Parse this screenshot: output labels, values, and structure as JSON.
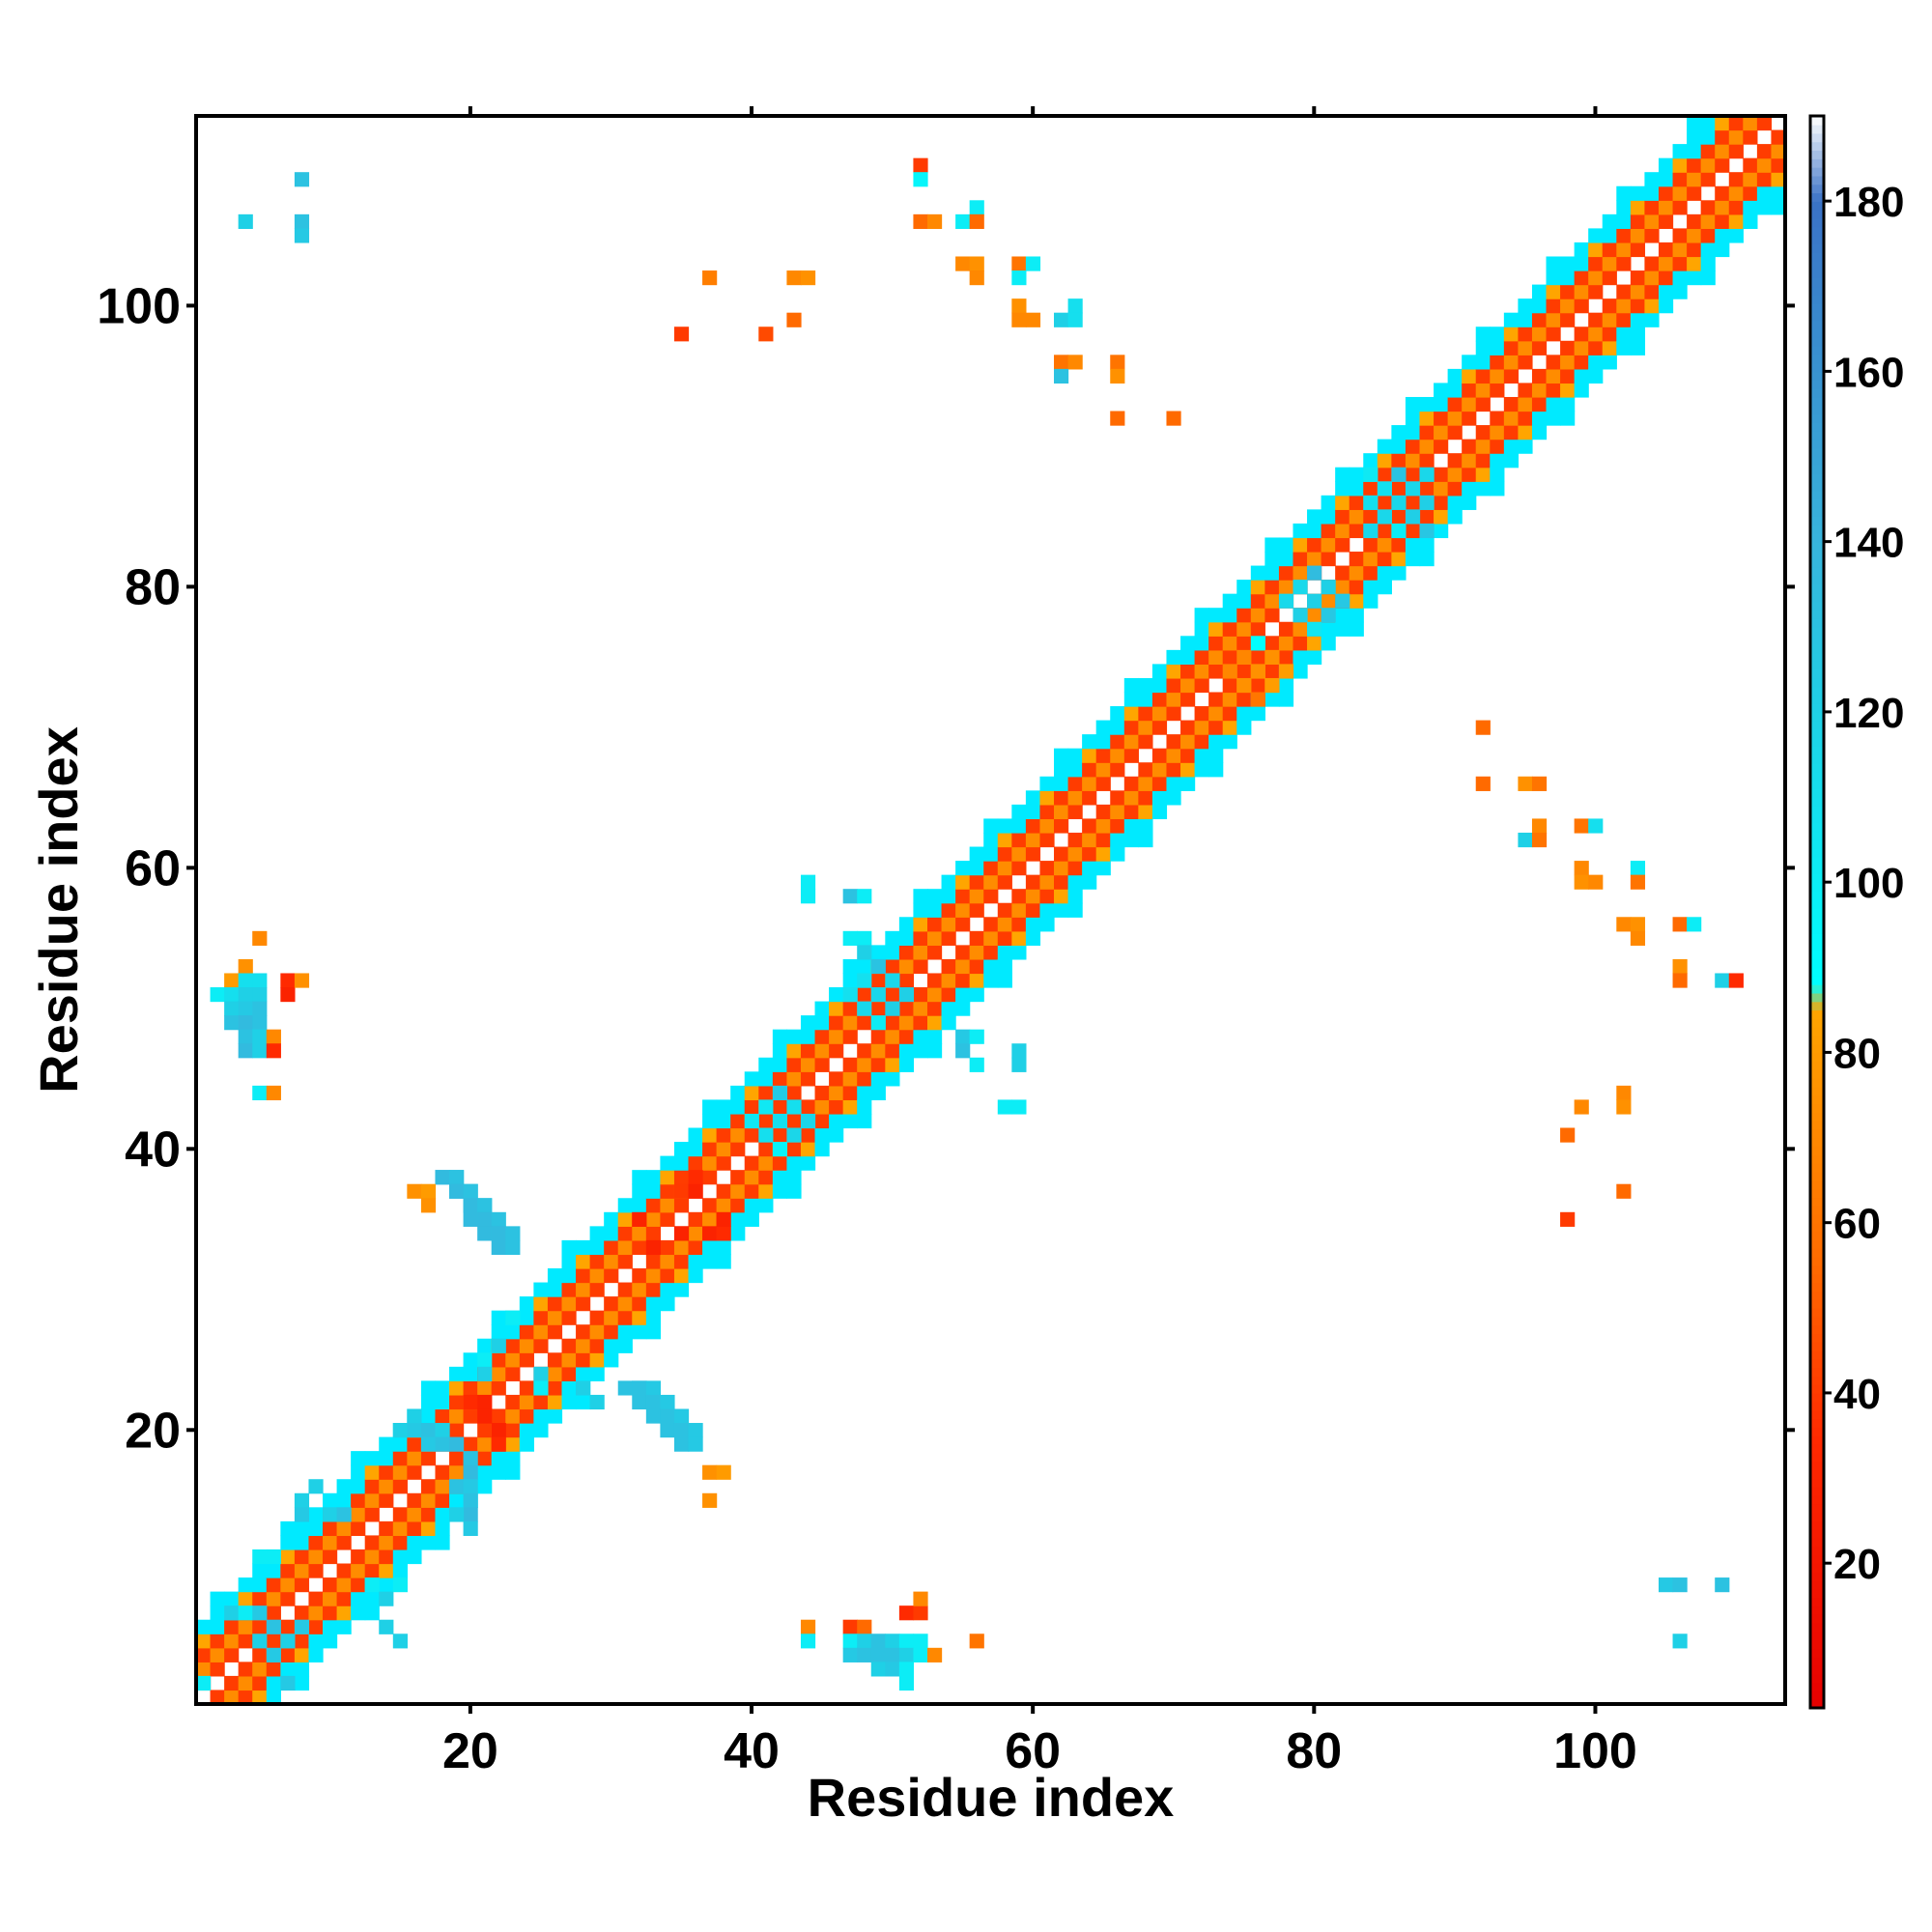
{
  "chart_data": {
    "type": "heatmap",
    "title": "",
    "xlabel": "Residue index",
    "ylabel": "Residue index",
    "xlim": [
      0.5,
      113.5
    ],
    "ylim": [
      0.5,
      113.5
    ],
    "x_ticks": [
      "20",
      "40",
      "60",
      "80",
      "100"
    ],
    "y_ticks": [
      "20",
      "40",
      "60",
      "80",
      "100"
    ],
    "colorbar": {
      "ticks": [
        "20",
        "40",
        "60",
        "80",
        "100",
        "120",
        "140",
        "160",
        "180"
      ],
      "range": [
        3,
        190
      ],
      "stops": [
        {
          "value": 3,
          "color": "#e60000"
        },
        {
          "value": 35,
          "color": "#ff2a00"
        },
        {
          "value": 55,
          "color": "#ff6a00"
        },
        {
          "value": 85,
          "color": "#ffa500"
        },
        {
          "value": 88,
          "color": "#00ffff"
        },
        {
          "value": 120,
          "color": "#1fd0e6"
        },
        {
          "value": 140,
          "color": "#38b4dc"
        },
        {
          "value": 180,
          "color": "#3a72c6"
        },
        {
          "value": 190,
          "color": "#ffffff"
        }
      ]
    },
    "diagonal": {
      "from": 1,
      "to": 113,
      "band_near": 4,
      "band_far": 6
    },
    "near_diagonal_color": "#ff3c00",
    "mid_diagonal_colors": [
      "#ff8c00",
      "#ffa500"
    ],
    "far_diagonal_color": "#00eaff",
    "off_diagonal_cells": [
      {
        "x": 4,
        "y": 106,
        "v": 120
      },
      {
        "x": 8,
        "y": 109,
        "v": 130
      },
      {
        "x": 8,
        "y": 106,
        "v": 130
      },
      {
        "x": 8,
        "y": 105,
        "v": 125
      },
      {
        "x": 52,
        "y": 110,
        "v": 40
      },
      {
        "x": 52,
        "y": 109,
        "v": 95
      },
      {
        "x": 52,
        "y": 106,
        "v": 55
      },
      {
        "x": 53,
        "y": 106,
        "v": 70
      },
      {
        "x": 55,
        "y": 106,
        "v": 100
      },
      {
        "x": 56,
        "y": 107,
        "v": 100
      },
      {
        "x": 56,
        "y": 106,
        "v": 55
      },
      {
        "x": 37,
        "y": 102,
        "v": 65
      },
      {
        "x": 43,
        "y": 102,
        "v": 70
      },
      {
        "x": 44,
        "y": 102,
        "v": 75
      },
      {
        "x": 41,
        "y": 98,
        "v": 45
      },
      {
        "x": 35,
        "y": 98,
        "v": 40
      },
      {
        "x": 43,
        "y": 99,
        "v": 55
      },
      {
        "x": 55,
        "y": 103,
        "v": 70
      },
      {
        "x": 56,
        "y": 103,
        "v": 75
      },
      {
        "x": 56,
        "y": 102,
        "v": 70
      },
      {
        "x": 59,
        "y": 103,
        "v": 60
      },
      {
        "x": 60,
        "y": 103,
        "v": 100
      },
      {
        "x": 59,
        "y": 102,
        "v": 100
      },
      {
        "x": 59,
        "y": 100,
        "v": 75
      },
      {
        "x": 59,
        "y": 99,
        "v": 70
      },
      {
        "x": 60,
        "y": 99,
        "v": 70
      },
      {
        "x": 62,
        "y": 99,
        "v": 120
      },
      {
        "x": 63,
        "y": 100,
        "v": 110
      },
      {
        "x": 63,
        "y": 99,
        "v": 110
      },
      {
        "x": 62,
        "y": 96,
        "v": 60
      },
      {
        "x": 63,
        "y": 96,
        "v": 70
      },
      {
        "x": 62,
        "y": 95,
        "v": 130
      },
      {
        "x": 66,
        "y": 96,
        "v": 60
      },
      {
        "x": 66,
        "y": 95,
        "v": 75
      },
      {
        "x": 66,
        "y": 92,
        "v": 55
      },
      {
        "x": 70,
        "y": 92,
        "v": 55
      },
      {
        "x": 92,
        "y": 70,
        "v": 55
      },
      {
        "x": 92,
        "y": 66,
        "v": 55
      },
      {
        "x": 95,
        "y": 66,
        "v": 75
      },
      {
        "x": 96,
        "y": 66,
        "v": 60
      },
      {
        "x": 96,
        "y": 63,
        "v": 70
      },
      {
        "x": 95,
        "y": 62,
        "v": 120
      },
      {
        "x": 96,
        "y": 62,
        "v": 60
      },
      {
        "x": 99,
        "y": 63,
        "v": 60
      },
      {
        "x": 100,
        "y": 63,
        "v": 110
      },
      {
        "x": 99,
        "y": 60,
        "v": 70
      },
      {
        "x": 99,
        "y": 59,
        "v": 75
      },
      {
        "x": 100,
        "y": 59,
        "v": 70
      },
      {
        "x": 103,
        "y": 60,
        "v": 100
      },
      {
        "x": 103,
        "y": 59,
        "v": 60
      },
      {
        "x": 102,
        "y": 56,
        "v": 70
      },
      {
        "x": 103,
        "y": 56,
        "v": 75
      },
      {
        "x": 103,
        "y": 55,
        "v": 70
      },
      {
        "x": 106,
        "y": 56,
        "v": 55
      },
      {
        "x": 107,
        "y": 56,
        "v": 100
      },
      {
        "x": 106,
        "y": 53,
        "v": 75
      },
      {
        "x": 106,
        "y": 52,
        "v": 55
      },
      {
        "x": 109,
        "y": 52,
        "v": 120
      },
      {
        "x": 110,
        "y": 52,
        "v": 35
      },
      {
        "x": 99,
        "y": 43,
        "v": 70
      },
      {
        "x": 98,
        "y": 41,
        "v": 55
      },
      {
        "x": 102,
        "y": 44,
        "v": 70
      },
      {
        "x": 102,
        "y": 43,
        "v": 75
      },
      {
        "x": 102,
        "y": 37,
        "v": 55
      },
      {
        "x": 98,
        "y": 35,
        "v": 40
      },
      {
        "x": 105,
        "y": 9,
        "v": 125
      },
      {
        "x": 106,
        "y": 9,
        "v": 130
      },
      {
        "x": 109,
        "y": 9,
        "v": 130
      },
      {
        "x": 106,
        "y": 5,
        "v": 120
      },
      {
        "x": 5,
        "y": 55,
        "v": 70
      },
      {
        "x": 4,
        "y": 53,
        "v": 75
      },
      {
        "x": 3,
        "y": 52,
        "v": 80
      },
      {
        "x": 4,
        "y": 52,
        "v": 110
      },
      {
        "x": 5,
        "y": 52,
        "v": 110
      },
      {
        "x": 2,
        "y": 51,
        "v": 100
      },
      {
        "x": 3,
        "y": 51,
        "v": 110
      },
      {
        "x": 4,
        "y": 51,
        "v": 120
      },
      {
        "x": 5,
        "y": 51,
        "v": 120
      },
      {
        "x": 3,
        "y": 50,
        "v": 120
      },
      {
        "x": 4,
        "y": 50,
        "v": 125
      },
      {
        "x": 5,
        "y": 50,
        "v": 130
      },
      {
        "x": 3,
        "y": 49,
        "v": 130
      },
      {
        "x": 4,
        "y": 49,
        "v": 135
      },
      {
        "x": 5,
        "y": 49,
        "v": 130
      },
      {
        "x": 4,
        "y": 48,
        "v": 130
      },
      {
        "x": 5,
        "y": 48,
        "v": 120
      },
      {
        "x": 6,
        "y": 48,
        "v": 70
      },
      {
        "x": 4,
        "y": 47,
        "v": 135
      },
      {
        "x": 5,
        "y": 47,
        "v": 120
      },
      {
        "x": 6,
        "y": 47,
        "v": 35
      },
      {
        "x": 5,
        "y": 44,
        "v": 100
      },
      {
        "x": 6,
        "y": 44,
        "v": 70
      },
      {
        "x": 7,
        "y": 52,
        "v": 35
      },
      {
        "x": 7,
        "y": 51,
        "v": 30
      },
      {
        "x": 8,
        "y": 52,
        "v": 75
      },
      {
        "x": 44,
        "y": 59,
        "v": 100
      },
      {
        "x": 44,
        "y": 58,
        "v": 100
      },
      {
        "x": 47,
        "y": 58,
        "v": 130
      },
      {
        "x": 48,
        "y": 58,
        "v": 100
      },
      {
        "x": 47,
        "y": 55,
        "v": 100
      },
      {
        "x": 48,
        "y": 55,
        "v": 100
      },
      {
        "x": 48,
        "y": 54,
        "v": 120
      },
      {
        "x": 55,
        "y": 48,
        "v": 125
      },
      {
        "x": 55,
        "y": 47,
        "v": 130
      },
      {
        "x": 56,
        "y": 48,
        "v": 100
      },
      {
        "x": 56,
        "y": 46,
        "v": 100
      },
      {
        "x": 59,
        "y": 47,
        "v": 120
      },
      {
        "x": 59,
        "y": 46,
        "v": 120
      },
      {
        "x": 58,
        "y": 43,
        "v": 100
      },
      {
        "x": 59,
        "y": 43,
        "v": 100
      },
      {
        "x": 44,
        "y": 6,
        "v": 70
      },
      {
        "x": 44,
        "y": 5,
        "v": 100
      },
      {
        "x": 47,
        "y": 6,
        "v": 40
      },
      {
        "x": 48,
        "y": 6,
        "v": 55
      },
      {
        "x": 51,
        "y": 7,
        "v": 35
      },
      {
        "x": 52,
        "y": 7,
        "v": 40
      },
      {
        "x": 52,
        "y": 8,
        "v": 70
      },
      {
        "x": 47,
        "y": 5,
        "v": 100
      },
      {
        "x": 48,
        "y": 5,
        "v": 120
      },
      {
        "x": 49,
        "y": 5,
        "v": 130
      },
      {
        "x": 50,
        "y": 5,
        "v": 120
      },
      {
        "x": 51,
        "y": 5,
        "v": 100
      },
      {
        "x": 52,
        "y": 5,
        "v": 100
      },
      {
        "x": 47,
        "y": 4,
        "v": 125
      },
      {
        "x": 48,
        "y": 4,
        "v": 130
      },
      {
        "x": 49,
        "y": 4,
        "v": 130
      },
      {
        "x": 50,
        "y": 4,
        "v": 130
      },
      {
        "x": 51,
        "y": 4,
        "v": 120
      },
      {
        "x": 52,
        "y": 4,
        "v": 100
      },
      {
        "x": 53,
        "y": 4,
        "v": 70
      },
      {
        "x": 56,
        "y": 5,
        "v": 60
      },
      {
        "x": 49,
        "y": 3,
        "v": 120
      },
      {
        "x": 50,
        "y": 3,
        "v": 125
      },
      {
        "x": 51,
        "y": 3,
        "v": 100
      },
      {
        "x": 51,
        "y": 2,
        "v": 100
      },
      {
        "x": 16,
        "y": 37,
        "v": 75
      },
      {
        "x": 17,
        "y": 37,
        "v": 80
      },
      {
        "x": 17,
        "y": 36,
        "v": 75
      },
      {
        "x": 37,
        "y": 17,
        "v": 75
      },
      {
        "x": 38,
        "y": 17,
        "v": 80
      },
      {
        "x": 37,
        "y": 15,
        "v": 75
      },
      {
        "x": 16,
        "y": 21,
        "v": 120
      },
      {
        "x": 15,
        "y": 20,
        "v": 120
      },
      {
        "x": 16,
        "y": 20,
        "v": 125
      },
      {
        "x": 17,
        "y": 20,
        "v": 130
      },
      {
        "x": 18,
        "y": 20,
        "v": 120
      },
      {
        "x": 17,
        "y": 19,
        "v": 125
      },
      {
        "x": 18,
        "y": 19,
        "v": 130
      },
      {
        "x": 19,
        "y": 19,
        "v": 135
      },
      {
        "x": 20,
        "y": 18,
        "v": 130
      },
      {
        "x": 20,
        "y": 17,
        "v": 135
      },
      {
        "x": 19,
        "y": 16,
        "v": 130
      },
      {
        "x": 20,
        "y": 16,
        "v": 125
      },
      {
        "x": 20,
        "y": 15,
        "v": 130
      },
      {
        "x": 20,
        "y": 14,
        "v": 135
      },
      {
        "x": 20,
        "y": 13,
        "v": 125
      },
      {
        "x": 19,
        "y": 14,
        "v": 120
      },
      {
        "x": 8,
        "y": 15,
        "v": 120
      },
      {
        "x": 8,
        "y": 14,
        "v": 125
      },
      {
        "x": 9,
        "y": 16,
        "v": 120
      },
      {
        "x": 10,
        "y": 14,
        "v": 120
      },
      {
        "x": 11,
        "y": 14,
        "v": 130
      },
      {
        "x": 5,
        "y": 11,
        "v": 100
      },
      {
        "x": 6,
        "y": 11,
        "v": 100
      },
      {
        "x": 13,
        "y": 9,
        "v": 100
      },
      {
        "x": 14,
        "y": 8,
        "v": 120
      },
      {
        "x": 15,
        "y": 9,
        "v": 100
      },
      {
        "x": 14,
        "y": 6,
        "v": 120
      },
      {
        "x": 15,
        "y": 5,
        "v": 120
      },
      {
        "x": 8,
        "y": 6,
        "v": 125
      },
      {
        "x": 7,
        "y": 5,
        "v": 120
      },
      {
        "x": 3,
        "y": 7,
        "v": 120
      },
      {
        "x": 4,
        "y": 7,
        "v": 100
      },
      {
        "x": 5,
        "y": 7,
        "v": 125
      },
      {
        "x": 6,
        "y": 6,
        "v": 130
      },
      {
        "x": 5,
        "y": 5,
        "v": 120
      },
      {
        "x": 6,
        "y": 4,
        "v": 125
      },
      {
        "x": 7,
        "y": 2,
        "v": 125
      },
      {
        "x": 1,
        "y": 2,
        "v": 100
      },
      {
        "x": 23,
        "y": 28,
        "v": 100
      },
      {
        "x": 22,
        "y": 26,
        "v": 120
      },
      {
        "x": 21,
        "y": 25,
        "v": 100
      },
      {
        "x": 21,
        "y": 24,
        "v": 120
      },
      {
        "x": 25,
        "y": 24,
        "v": 120
      },
      {
        "x": 25,
        "y": 23,
        "v": 100
      },
      {
        "x": 28,
        "y": 23,
        "v": 120
      },
      {
        "x": 29,
        "y": 22,
        "v": 120
      },
      {
        "x": 20,
        "y": 22,
        "v": 35
      },
      {
        "x": 21,
        "y": 22,
        "v": 30
      },
      {
        "x": 21,
        "y": 21,
        "v": 30
      },
      {
        "x": 22,
        "y": 20,
        "v": 30
      },
      {
        "x": 22,
        "y": 19,
        "v": 35
      },
      {
        "x": 36,
        "y": 38,
        "v": 35
      },
      {
        "x": 35,
        "y": 37,
        "v": 40
      },
      {
        "x": 36,
        "y": 37,
        "v": 30
      },
      {
        "x": 37,
        "y": 34,
        "v": 30
      },
      {
        "x": 38,
        "y": 34,
        "v": 35
      },
      {
        "x": 38,
        "y": 35,
        "v": 30
      },
      {
        "x": 32,
        "y": 35,
        "v": 30
      },
      {
        "x": 35,
        "y": 34,
        "v": 30
      },
      {
        "x": 33,
        "y": 33,
        "v": 30
      }
    ],
    "stripes": [
      {
        "x0": 18,
        "y0": 38,
        "x1": 22,
        "y1": 33,
        "width": 2,
        "v": 135
      },
      {
        "x0": 31,
        "y0": 23,
        "x1": 35,
        "y1": 19,
        "width": 2,
        "v": 130
      }
    ],
    "blobs": [
      {
        "x": 42,
        "y": 42,
        "rx": 3,
        "ry": 2,
        "v": 110
      },
      {
        "x": 49,
        "y": 51,
        "rx": 3,
        "ry": 2,
        "v": 115
      },
      {
        "x": 86,
        "y": 86,
        "rx": 3,
        "ry": 3,
        "v": 115
      },
      {
        "x": 80,
        "y": 79,
        "rx": 2,
        "ry": 2,
        "v": 120
      },
      {
        "x": 76,
        "y": 74,
        "rx": 2,
        "ry": 2,
        "v": 75
      }
    ]
  }
}
